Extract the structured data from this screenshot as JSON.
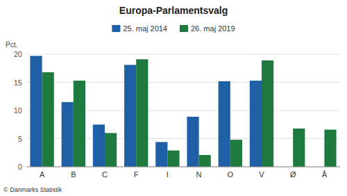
{
  "chart_data": {
    "type": "bar",
    "title": "Europa-Parlamentsvalg",
    "ylabel": "Pct.",
    "footer": "© Danmarks Statistik",
    "categories": [
      "A",
      "B",
      "C",
      "F",
      "I",
      "N",
      "O",
      "V",
      "Ø",
      "Å"
    ],
    "series": [
      {
        "name": "25. maj 2014",
        "color": "#1F5FA6",
        "values": [
          19.7,
          11.5,
          7.5,
          18.1,
          4.4,
          8.9,
          15.2,
          15.3,
          0.0,
          0.0
        ]
      },
      {
        "name": "26. maj 2019",
        "color": "#1E7A3E",
        "values": [
          16.8,
          15.3,
          6.0,
          19.1,
          2.9,
          2.1,
          4.8,
          18.9,
          6.8,
          6.6
        ]
      }
    ],
    "ylim": [
      0,
      20
    ],
    "yticks": [
      0,
      5,
      10,
      15,
      20
    ],
    "grid": true,
    "legend": "top"
  }
}
